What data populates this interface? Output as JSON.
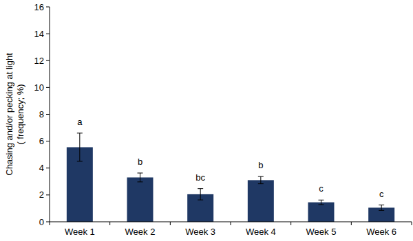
{
  "chart_data": {
    "type": "bar",
    "y_label": [
      "Chasing and/or pecking at light",
      "( frequency; %)"
    ],
    "categories": [
      "Week 1",
      "Week 2",
      "Week 3",
      "Week 4",
      "Week 5",
      "Week 6"
    ],
    "values": [
      5.55,
      3.3,
      2.05,
      3.1,
      1.45,
      1.05
    ],
    "errors": [
      1.05,
      0.33,
      0.42,
      0.27,
      0.17,
      0.2
    ],
    "annotations": [
      "a",
      "b",
      "bc",
      "b",
      "c",
      "c"
    ],
    "color": "#1f3864",
    "ylim": [
      0,
      16
    ],
    "yticks": [
      0,
      2,
      4,
      6,
      8,
      10,
      12,
      14,
      16
    ],
    "grid": false
  }
}
